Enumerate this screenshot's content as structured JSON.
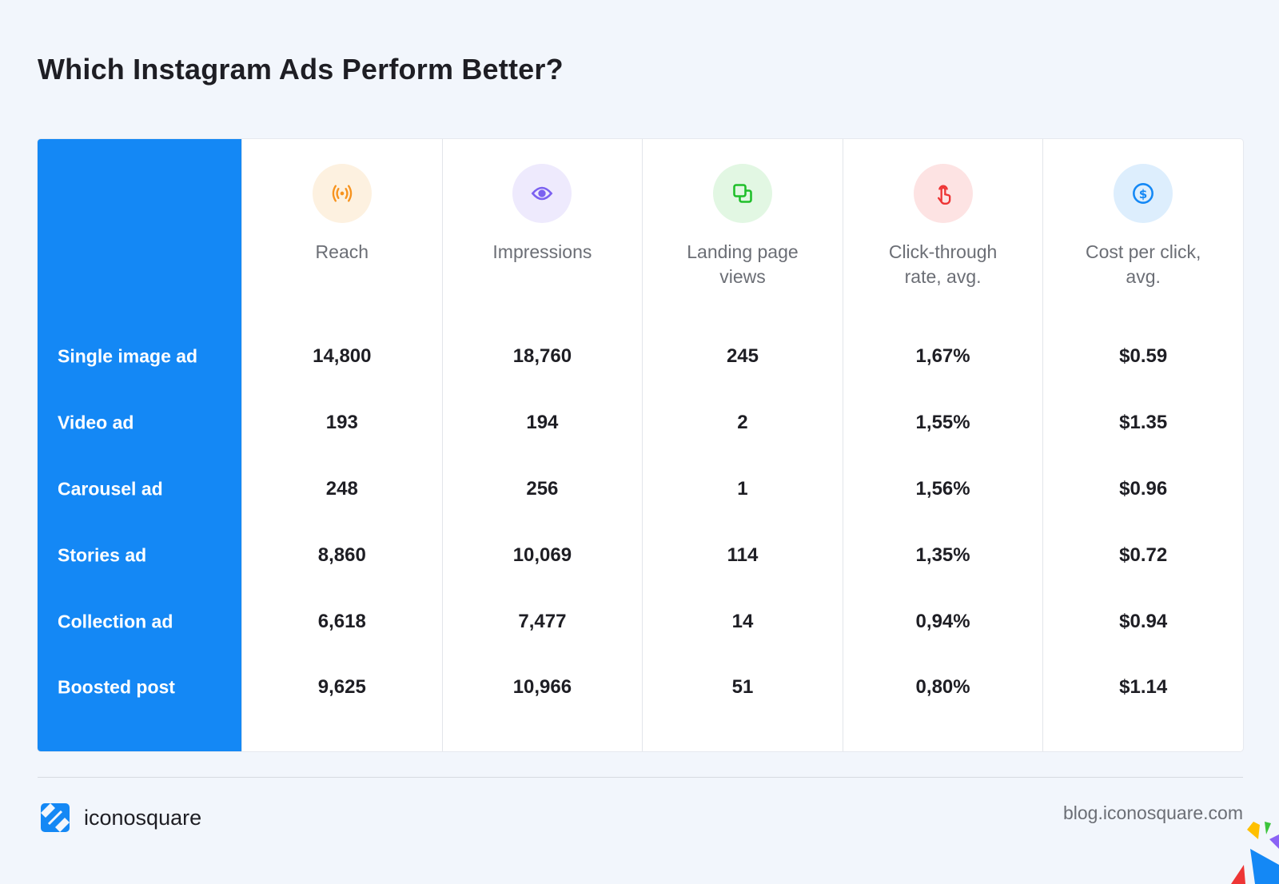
{
  "title": "Which Instagram Ads Perform Better?",
  "columns": [
    {
      "label": "Reach",
      "icon": "broadcast-icon",
      "color": "#f7931e",
      "bg": "#fdf1e0"
    },
    {
      "label": "Impressions",
      "icon": "eye-icon",
      "color": "#7b61f0",
      "bg": "#eeeafd"
    },
    {
      "label": "Landing page views",
      "icon": "copy-pages-icon",
      "color": "#1fbf2a",
      "bg": "#e2f7e3"
    },
    {
      "label": "Click-through rate, avg.",
      "icon": "tap-finger-icon",
      "color": "#ee3535",
      "bg": "#fde3e3"
    },
    {
      "label": "Cost per click, avg.",
      "icon": "dollar-coin-icon",
      "color": "#1488f5",
      "bg": "#ddeefd"
    }
  ],
  "rows": [
    {
      "label": "Single image ad",
      "values": [
        "14,800",
        "18,760",
        "245",
        "1,67%",
        "$0.59"
      ]
    },
    {
      "label": "Video ad",
      "values": [
        "193",
        "194",
        "2",
        "1,55%",
        "$1.35"
      ]
    },
    {
      "label": "Carousel ad",
      "values": [
        "248",
        "256",
        "1",
        "1,56%",
        "$0.96"
      ]
    },
    {
      "label": "Stories ad",
      "values": [
        "8,860",
        "10,069",
        "114",
        "1,35%",
        "$0.72"
      ]
    },
    {
      "label": "Collection ad",
      "values": [
        "6,618",
        "7,477",
        "14",
        "0,94%",
        "$0.94"
      ]
    },
    {
      "label": "Boosted post",
      "values": [
        "9,625",
        "10,966",
        "51",
        "0,80%",
        "$1.14"
      ]
    }
  ],
  "chart_data": {
    "type": "table",
    "title": "Which Instagram Ads Perform Better?",
    "columns": [
      "Reach",
      "Impressions",
      "Landing page views",
      "Click-through rate, avg.",
      "Cost per click, avg."
    ],
    "rows": [
      "Single image ad",
      "Video ad",
      "Carousel ad",
      "Stories ad",
      "Collection ad",
      "Boosted post"
    ]
  },
  "footer": {
    "brand": "iconosquare",
    "url": "blog.iconosquare.com"
  },
  "colors": {
    "accent": "#1488f5",
    "background": "#f2f6fc"
  }
}
